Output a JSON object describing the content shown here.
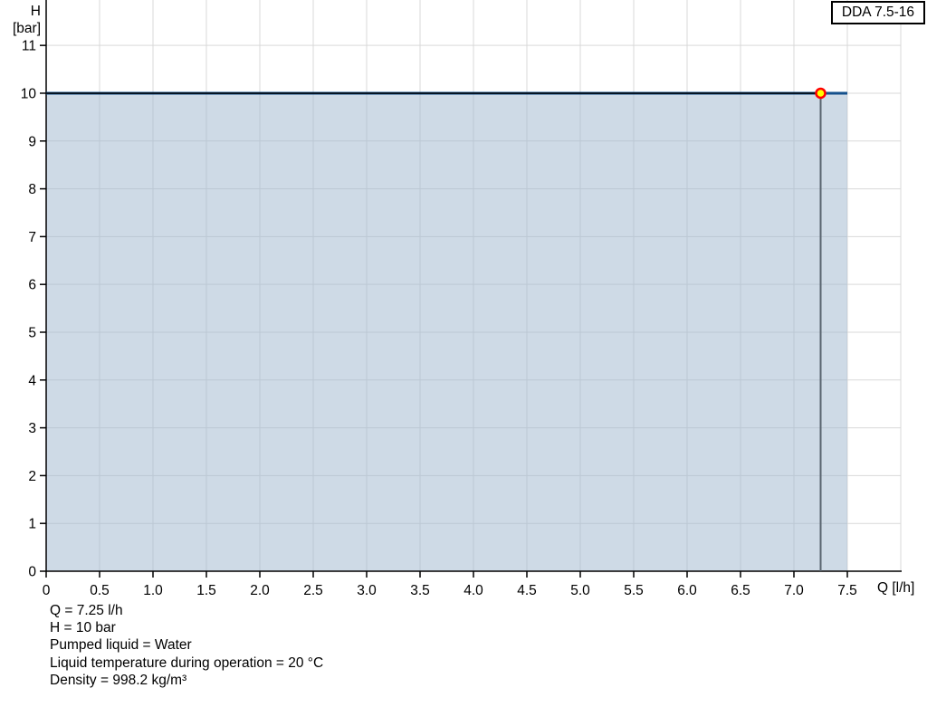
{
  "chart_data": {
    "type": "area",
    "title_box": "DDA 7.5-16",
    "xlabel": "Q [l/h]",
    "ylabel_lines": [
      "H",
      "[bar]"
    ],
    "xlim": [
      0,
      8
    ],
    "ylim": [
      0,
      11.95
    ],
    "x_tick_values": [
      0,
      0.5,
      1.0,
      1.5,
      2.0,
      2.5,
      3.0,
      3.5,
      4.0,
      4.5,
      5.0,
      5.5,
      6.0,
      6.5,
      7.0,
      7.5
    ],
    "x_tick_labels": [
      "0",
      "0.5",
      "1.0",
      "1.5",
      "2.0",
      "2.5",
      "3.0",
      "3.5",
      "4.0",
      "4.5",
      "5.0",
      "5.5",
      "6.0",
      "6.5",
      "7.0",
      "7.5"
    ],
    "x_grid_values": [
      0.5,
      1.0,
      1.5,
      2.0,
      2.5,
      3.0,
      3.5,
      4.0,
      4.5,
      5.0,
      5.5,
      6.0,
      6.5,
      7.0,
      7.5,
      8.0
    ],
    "y_tick_values": [
      0,
      1,
      2,
      3,
      4,
      5,
      6,
      7,
      8,
      9,
      10,
      11
    ],
    "y_tick_labels": [
      "0",
      "1",
      "2",
      "3",
      "4",
      "5",
      "6",
      "7",
      "8",
      "9",
      "10",
      "11"
    ],
    "y_grid_values": [
      1,
      2,
      3,
      4,
      5,
      6,
      7,
      8,
      9,
      10,
      11
    ],
    "grid": true,
    "legend_position": "none",
    "series": [
      {
        "name": "pump-curve",
        "x": [
          0,
          7.5
        ],
        "y": [
          10,
          10
        ],
        "area": true
      }
    ],
    "operating_point": {
      "q": 7.25,
      "h": 10
    },
    "colors": {
      "grid": "#d9d9d9",
      "axis": "#000000",
      "curve": "#14508c",
      "area_fill": "rgba(162,184,207,0.52)",
      "op_hline": "#000000",
      "op_vline": "#5a6570",
      "marker_fill": "#ffff00",
      "marker_stroke": "#ff0000"
    }
  },
  "footer": {
    "lines": [
      "Q = 7.25 l/h",
      "H = 10 bar",
      "Pumped liquid = Water",
      "Liquid temperature during operation = 20 °C",
      "Density = 998.2 kg/m³"
    ]
  }
}
